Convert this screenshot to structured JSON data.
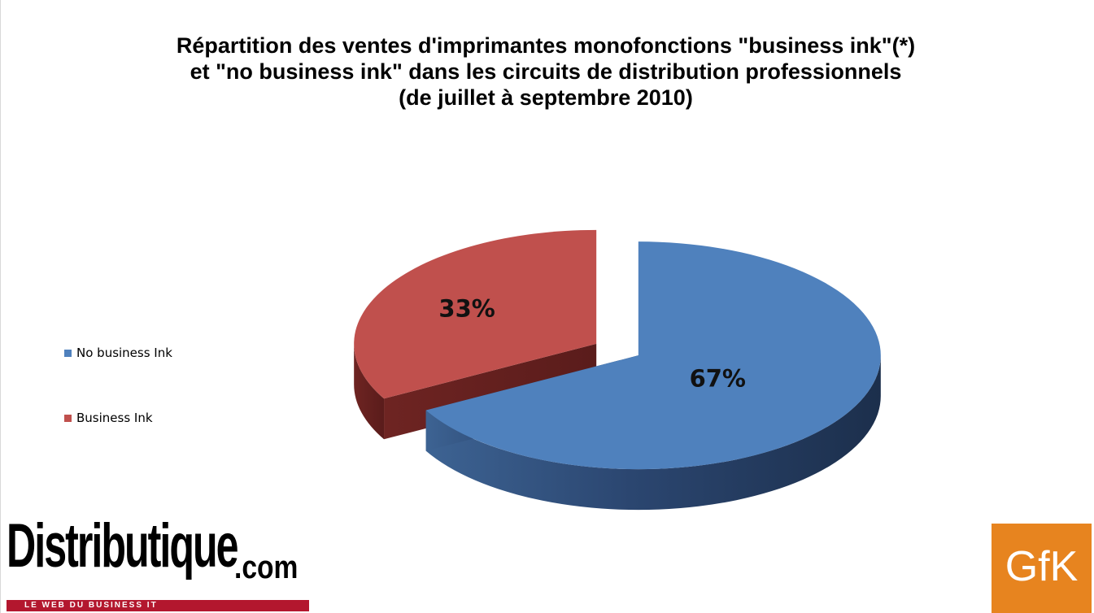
{
  "chart_data": {
    "type": "pie",
    "title": [
      "Répartition des ventes d'imprimantes monofonctions \"business ink\"(*)",
      "et \"no business ink\" dans les circuits de distribution professionnels",
      "(de juillet à septembre 2010)"
    ],
    "categories": [
      "No business Ink",
      "Business Ink"
    ],
    "values": [
      67,
      33
    ],
    "data_labels": [
      "67%",
      "33%"
    ],
    "colors": [
      "#4f81bd",
      "#c0504d"
    ],
    "legend_position": "left",
    "style": "3d-exploded"
  },
  "logos": {
    "distributique_main": "Distributique",
    "distributique_suffix": ".com",
    "distributique_tagline": "LE WEB DU BUSINESS IT",
    "gfk": "GfK"
  }
}
